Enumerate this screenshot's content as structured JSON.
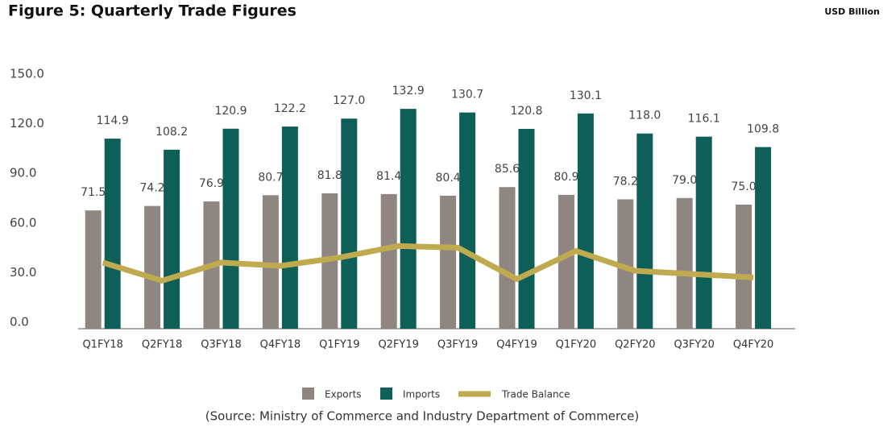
{
  "chart_data": {
    "type": "bar",
    "title": "Figure 5: Quarterly Trade Figures",
    "unit_label": "USD Billion",
    "source": "(Source: Ministry of Commerce and Industry Department of Commerce)",
    "categories": [
      "Q1FY18",
      "Q2FY18",
      "Q3FY18",
      "Q4FY18",
      "Q1FY19",
      "Q2FY19",
      "Q3FY19",
      "Q4FY19",
      "Q1FY20",
      "Q2FY20",
      "Q3FY20",
      "Q4FY20"
    ],
    "series": [
      {
        "name": "Exports",
        "type": "bar",
        "color": "#8f8581",
        "values": [
          71.5,
          74.2,
          76.9,
          80.7,
          81.8,
          81.4,
          80.4,
          85.6,
          80.9,
          78.2,
          79.0,
          75.0
        ],
        "value_labels": [
          "71.5",
          "74.2",
          "76.9",
          "80.7",
          "81.8",
          "81.4",
          "80.4",
          "85.6",
          "80.9",
          "78.2",
          "79.0",
          "75.0"
        ]
      },
      {
        "name": "Imports",
        "type": "bar",
        "color": "#0e5f58",
        "values": [
          114.9,
          108.2,
          120.9,
          122.2,
          127.0,
          132.9,
          130.7,
          120.8,
          130.1,
          118.0,
          116.1,
          109.8
        ],
        "value_labels": [
          "114.9",
          "108.2",
          "120.9",
          "122.2",
          "127.0",
          "132.9",
          "130.7",
          "120.8",
          "130.1",
          "118.0",
          "116.1",
          "109.8"
        ]
      },
      {
        "name": "Trade Balance",
        "type": "line",
        "color": "#bfaa50",
        "values": [
          40,
          29,
          40,
          38,
          43,
          50,
          49,
          30,
          47,
          35,
          33,
          31
        ]
      }
    ],
    "ylim": [
      0,
      150
    ],
    "yticks": [
      {
        "value": 0,
        "label": "0.0"
      },
      {
        "value": 30,
        "label": "30.0"
      },
      {
        "value": 60,
        "label": "60.0"
      },
      {
        "value": 90,
        "label": "90.0"
      },
      {
        "value": 120,
        "label": "120.0"
      },
      {
        "value": 150,
        "label": "150.0"
      }
    ],
    "grid": false,
    "legend": "bottom"
  }
}
